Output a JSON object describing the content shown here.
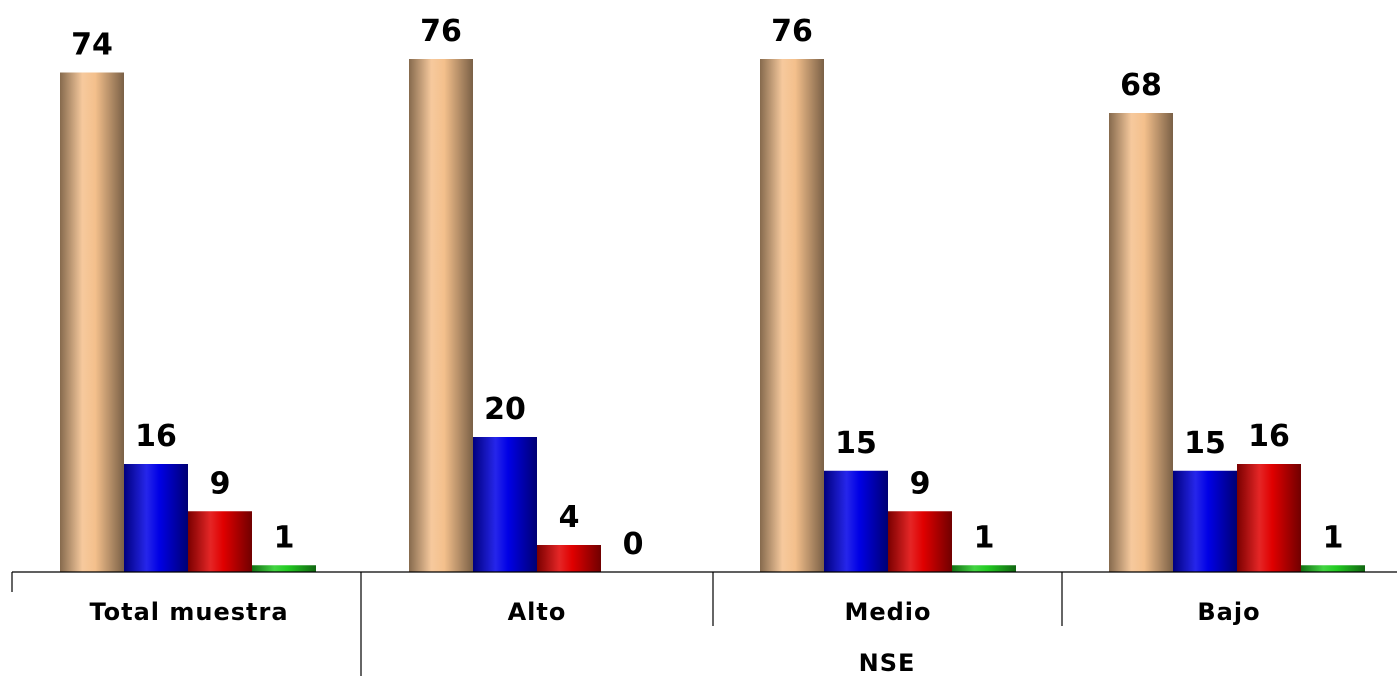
{
  "chart_data": {
    "type": "bar",
    "categories": [
      "Total muestra",
      "Alto",
      "Medio",
      "Bajo"
    ],
    "group_label": "NSE",
    "ylim": [
      0,
      80
    ],
    "grid": false,
    "legend": "none",
    "series": [
      {
        "color": "#f4c08c",
        "values": [
          74,
          76,
          76,
          68
        ]
      },
      {
        "color": "#0000e6",
        "values": [
          16,
          20,
          15,
          15
        ]
      },
      {
        "color": "#e00000",
        "values": [
          9,
          4,
          9,
          16
        ]
      },
      {
        "color": "#22cc22",
        "values": [
          1,
          0,
          1,
          1
        ]
      }
    ]
  }
}
